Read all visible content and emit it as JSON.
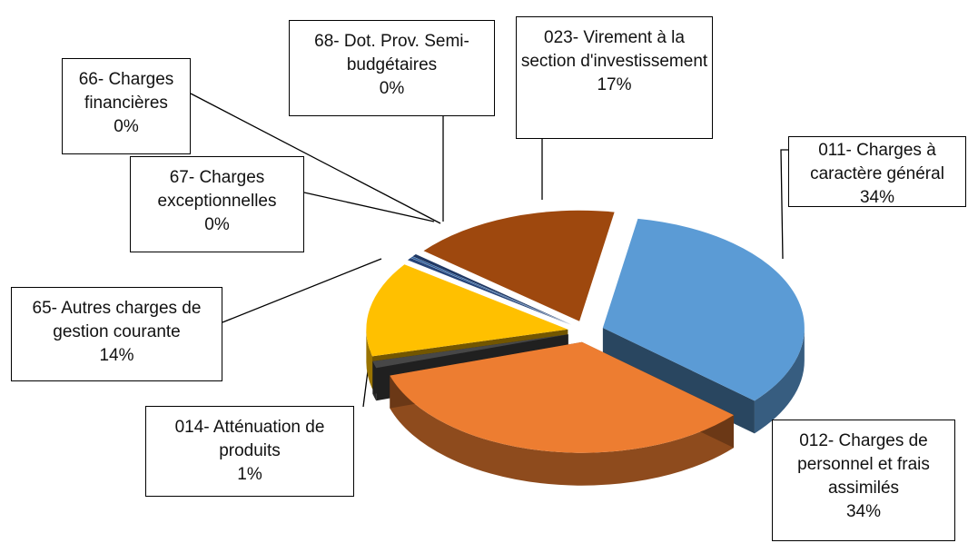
{
  "chart_data": {
    "type": "pie",
    "categories": [
      "011- Charges à caractère général",
      "012- Charges de personnel et frais assimilés",
      "014- Atténuation de produits",
      "65- Autres charges de gestion courante",
      "67- Charges exceptionnelles",
      "66- Charges financières",
      "68- Dot. Prov. Semi-budgétaires",
      "023- Virement à la section d'investissement"
    ],
    "values": [
      34,
      34,
      1,
      14,
      0.4,
      0.2,
      0.4,
      17
    ],
    "value_labels": [
      "34%",
      "34%",
      "1%",
      "14%",
      "0%",
      "0%",
      "0%",
      "17%"
    ],
    "colors": [
      "#5b9bd5",
      "#ed7d31",
      "#474747",
      "#ffc000",
      "#264478",
      "#2a5c9a",
      "#1f3864",
      "#9e480e"
    ]
  }
}
